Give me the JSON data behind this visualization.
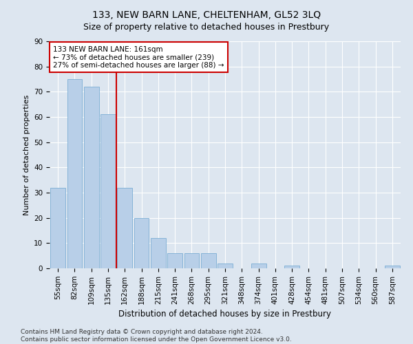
{
  "title": "133, NEW BARN LANE, CHELTENHAM, GL52 3LQ",
  "subtitle": "Size of property relative to detached houses in Prestbury",
  "xlabel": "Distribution of detached houses by size in Prestbury",
  "ylabel": "Number of detached properties",
  "bar_labels": [
    "55sqm",
    "82sqm",
    "109sqm",
    "135sqm",
    "162sqm",
    "188sqm",
    "215sqm",
    "241sqm",
    "268sqm",
    "295sqm",
    "321sqm",
    "348sqm",
    "374sqm",
    "401sqm",
    "428sqm",
    "454sqm",
    "481sqm",
    "507sqm",
    "534sqm",
    "560sqm",
    "587sqm"
  ],
  "bar_values": [
    32,
    75,
    72,
    61,
    32,
    20,
    12,
    6,
    6,
    6,
    2,
    0,
    2,
    0,
    1,
    0,
    0,
    0,
    0,
    0,
    1
  ],
  "bar_color": "#b8cfe8",
  "bar_edgecolor": "#7aadd4",
  "vline_x_index": 4,
  "vline_color": "#cc0000",
  "annotation_text": "133 NEW BARN LANE: 161sqm\n← 73% of detached houses are smaller (239)\n27% of semi-detached houses are larger (88) →",
  "annotation_box_facecolor": "#ffffff",
  "annotation_box_edgecolor": "#cc0000",
  "ylim": [
    0,
    90
  ],
  "yticks": [
    0,
    10,
    20,
    30,
    40,
    50,
    60,
    70,
    80,
    90
  ],
  "bg_color": "#dde6f0",
  "plot_bg_color": "#dde6f0",
  "grid_color": "#ffffff",
  "footer_line1": "Contains HM Land Registry data © Crown copyright and database right 2024.",
  "footer_line2": "Contains public sector information licensed under the Open Government Licence v3.0.",
  "title_fontsize": 10,
  "subtitle_fontsize": 9,
  "ylabel_fontsize": 8,
  "xlabel_fontsize": 8.5,
  "tick_fontsize": 7.5,
  "annotation_fontsize": 7.5,
  "footer_fontsize": 6.5
}
